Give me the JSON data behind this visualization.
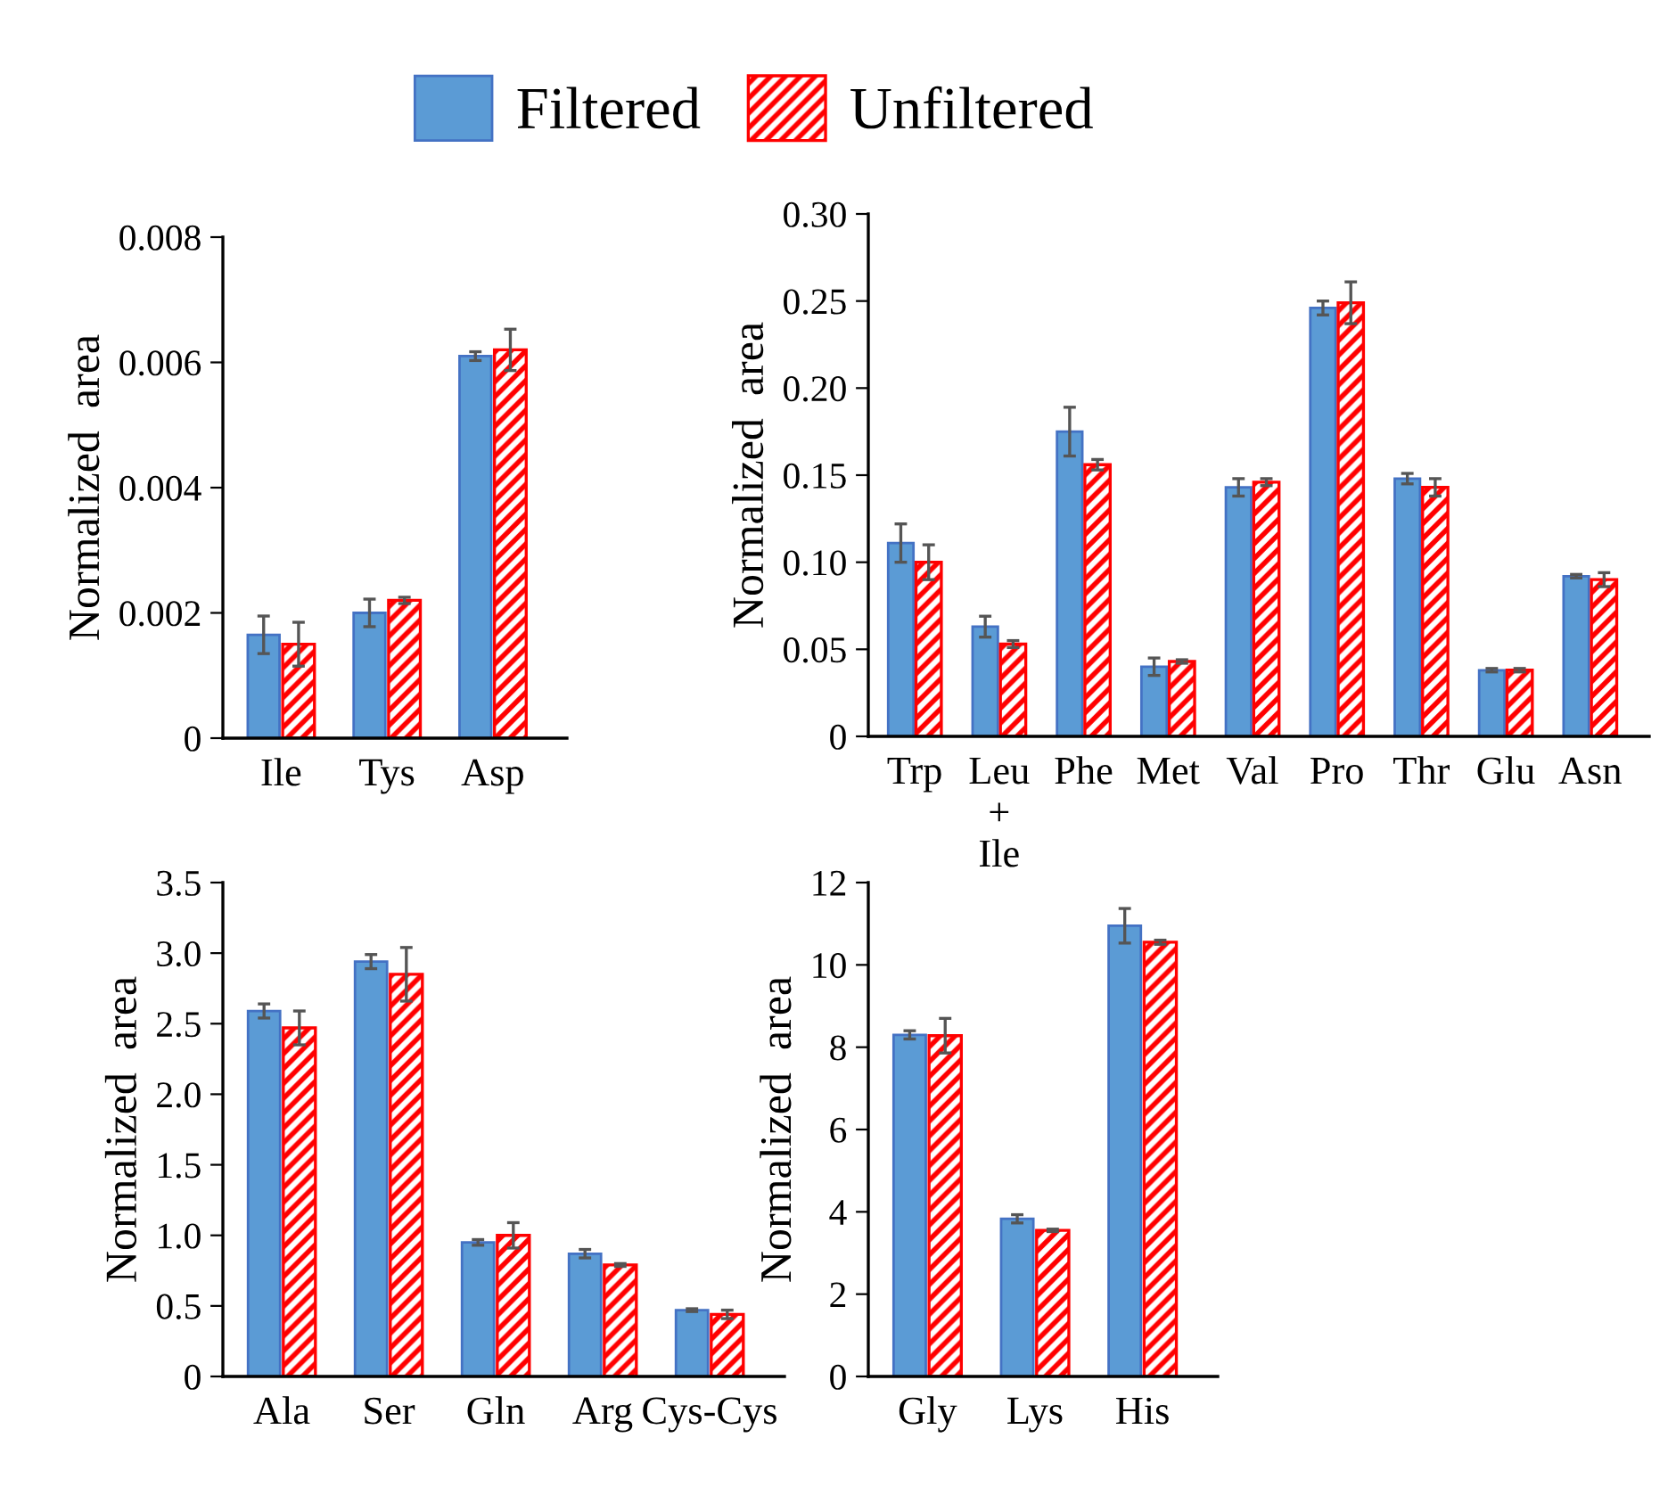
{
  "chart_data": [
    {
      "type": "bar",
      "categories": [
        "Ile",
        "Tys",
        "Asp"
      ],
      "ylabel": "Normalized  area",
      "ylim": [
        0,
        0.008
      ],
      "yticks": [
        {
          "value": 0,
          "label": "0"
        },
        0.002,
        0.004,
        0.006,
        0.008
      ],
      "legend": "top",
      "grid": false,
      "series": [
        {
          "name": "Filtered",
          "color": "#5b9bd5",
          "values": [
            0.00165,
            0.002,
            0.0061
          ],
          "errors": [
            0.0003,
            0.00022,
            7e-05
          ]
        },
        {
          "name": "Unfiltered",
          "color": "#ff0000",
          "values": [
            0.0015,
            0.0022,
            0.0062
          ],
          "errors": [
            0.00035,
            5e-05,
            0.00033
          ]
        }
      ]
    },
    {
      "type": "bar",
      "categories": [
        "Trp",
        "Leu\n+\nIle",
        "Phe",
        "Met",
        "Val",
        "Pro",
        "Thr",
        "Glu",
        "Asn"
      ],
      "ylabel": "Normalized  area",
      "ylim": [
        0,
        0.3
      ],
      "yticks": [
        {
          "value": 0,
          "label": "0"
        },
        {
          "value": 0.05,
          "label": "0.05"
        },
        {
          "value": 0.1,
          "label": "0.10"
        },
        {
          "value": 0.15,
          "label": "0.15"
        },
        {
          "value": 0.2,
          "label": "0.20"
        },
        {
          "value": 0.25,
          "label": "0.25"
        },
        {
          "value": 0.3,
          "label": "0.30"
        }
      ],
      "grid": false,
      "series": [
        {
          "color": "#5b9bd5",
          "values": [
            0.111,
            0.063,
            0.175,
            0.04,
            0.143,
            0.246,
            0.148,
            0.038,
            0.092
          ],
          "errors": [
            0.011,
            0.006,
            0.014,
            0.005,
            0.005,
            0.004,
            0.003,
            0.001,
            0.001
          ]
        },
        {
          "color": "#ff0000",
          "values": [
            0.1,
            0.053,
            0.156,
            0.043,
            0.146,
            0.249,
            0.143,
            0.038,
            0.09
          ],
          "errors": [
            0.01,
            0.002,
            0.003,
            0.001,
            0.002,
            0.012,
            0.005,
            0.001,
            0.004
          ]
        }
      ]
    },
    {
      "type": "bar",
      "categories": [
        "Ala",
        "Ser",
        "Gln",
        "Arg",
        "Cys-Cys"
      ],
      "ylabel": "Normalized  area",
      "ylim": [
        0,
        3.5
      ],
      "yticks": [
        {
          "value": 0,
          "label": "0"
        },
        0.5,
        {
          "value": 1,
          "label": "1.0"
        },
        1.5,
        {
          "value": 2,
          "label": "2.0"
        },
        2.5,
        {
          "value": 3,
          "label": "3.0"
        },
        3.5
      ],
      "grid": false,
      "series": [
        {
          "color": "#5b9bd5",
          "values": [
            2.59,
            2.94,
            0.95,
            0.87,
            0.47
          ],
          "errors": [
            0.05,
            0.05,
            0.02,
            0.03,
            0.01
          ]
        },
        {
          "color": "#ff0000",
          "values": [
            2.47,
            2.85,
            1.0,
            0.79,
            0.44
          ],
          "errors": [
            0.12,
            0.19,
            0.09,
            0.01,
            0.03
          ]
        }
      ]
    },
    {
      "type": "bar",
      "categories": [
        "Gly",
        "Lys",
        "His"
      ],
      "ylabel": "Normalized  area",
      "ylim": [
        0,
        12
      ],
      "yticks": [
        0,
        2,
        4,
        6,
        8,
        10,
        12
      ],
      "grid": false,
      "series": [
        {
          "color": "#5b9bd5",
          "values": [
            8.3,
            3.83,
            10.95
          ],
          "errors": [
            0.1,
            0.1,
            0.42
          ]
        },
        {
          "color": "#ff0000",
          "values": [
            8.28,
            3.55,
            10.55
          ],
          "errors": [
            0.42,
            0.03,
            0.05
          ]
        }
      ]
    }
  ]
}
